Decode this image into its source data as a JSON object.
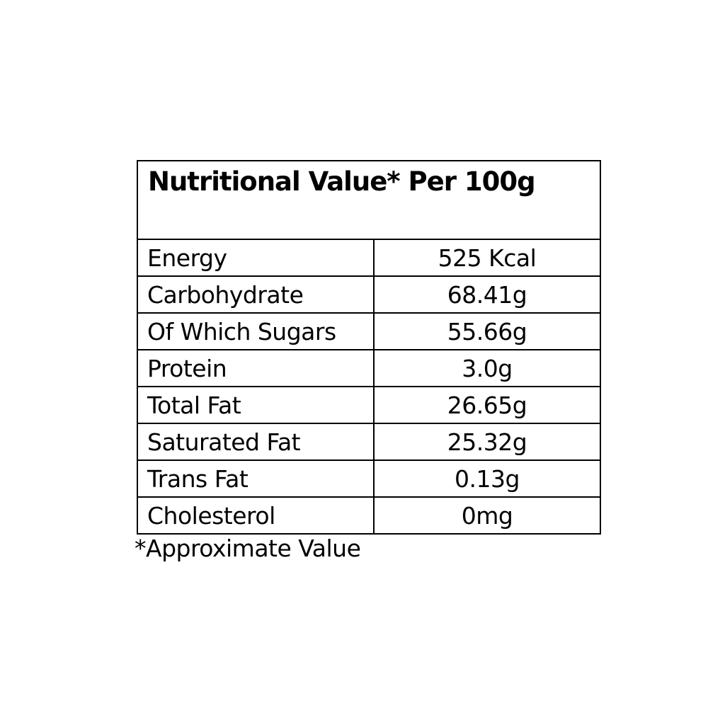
{
  "title": "Nutritional Value* Per 100g",
  "rows": [
    {
      "name": "Energy",
      "value": "525 Kcal"
    },
    {
      "name": "Carbohydrate",
      "value": "68.41g"
    },
    {
      "name": "Of Which Sugars",
      "value": "55.66g"
    },
    {
      "name": "Protein",
      "value": "3.0g"
    },
    {
      "name": "Total Fat",
      "value": "26.65g"
    },
    {
      "name": "Saturated Fat",
      "value": "25.32g"
    },
    {
      "name": "Trans Fat",
      "value": "0.13g"
    },
    {
      "name": "Cholesterol",
      "value": "0mg"
    }
  ],
  "footnote": "*Approximate Value"
}
